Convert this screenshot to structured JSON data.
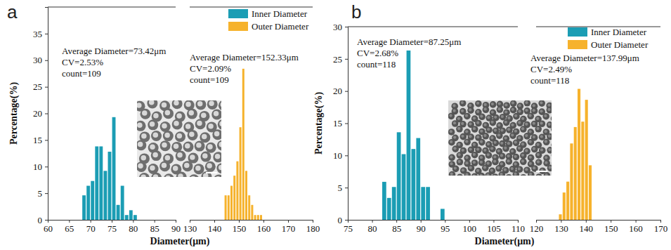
{
  "chart_data": [
    {
      "type": "histogram",
      "title": "a",
      "x_label": "Diameter(μm)",
      "y_label": "Percentage(%)",
      "xlim": [
        [
          60,
          90
        ],
        [
          130,
          180
        ]
      ],
      "xticks": [
        [
          60,
          65,
          70,
          75,
          80,
          85,
          90
        ],
        [
          130,
          140,
          150,
          160,
          170,
          180
        ]
      ],
      "ylim": [
        0,
        40
      ],
      "yticks": [
        0,
        5,
        10,
        15,
        20,
        25,
        30,
        35
      ],
      "grid": false,
      "legend": "upper right",
      "annotations": [
        [
          "Average Diameter=73.42μm",
          "CV=2.53%",
          "count=109"
        ],
        [
          "Average Diameter=152.33μm",
          "CV=2.09%",
          "count=109"
        ]
      ],
      "series": [
        {
          "name": "Inner Diameter",
          "color": "#1b9db4",
          "bins": [
            68,
            69,
            70,
            71,
            72,
            73,
            74,
            75,
            76,
            77,
            78,
            79,
            80,
            81
          ],
          "values": [
            4.6,
            6.4,
            7.3,
            13.8,
            13.8,
            9.2,
            12.8,
            19.3,
            2.8,
            6.4,
            0.9,
            1.8,
            0.9
          ]
        },
        {
          "name": "Outer Diameter",
          "color": "#f6b22c",
          "bins": [
            144.0,
            145.2,
            146.4,
            147.6,
            148.8,
            150.0,
            151.2,
            152.4,
            153.6,
            154.8,
            156.0,
            157.2,
            158.4,
            159.6
          ],
          "values": [
            4.6,
            4.6,
            6.4,
            8.3,
            11.0,
            17.4,
            28.4,
            9.2,
            4.6,
            2.8,
            0.9,
            0.9,
            0.9
          ]
        }
      ]
    },
    {
      "type": "histogram",
      "title": "b",
      "x_label": "Diameter(μm)",
      "y_label": "Percentage(%)",
      "xlim": [
        [
          75,
          110
        ],
        [
          120,
          170
        ]
      ],
      "xticks": [
        [
          75,
          80,
          85,
          90,
          95,
          100,
          105,
          110
        ],
        [
          120,
          130,
          140,
          150,
          160,
          170
        ]
      ],
      "ylim": [
        0,
        30
      ],
      "yticks": [
        0,
        5,
        10,
        15,
        20,
        25,
        30
      ],
      "grid": false,
      "legend": "upper right",
      "annotations": [
        [
          "Average Diameter=87.25μm",
          "CV=2.68%",
          "count=118"
        ],
        [
          "Average Diameter=137.99μm",
          "CV=2.49%",
          "count=118"
        ]
      ],
      "series": [
        {
          "name": "Inner Diameter",
          "color": "#1b9db4",
          "bins": [
            82,
            83,
            84,
            85,
            86,
            87,
            88,
            89,
            90,
            91,
            92,
            93,
            94,
            95
          ],
          "values": [
            5.9,
            3.4,
            5.1,
            13.6,
            10.2,
            26.3,
            11.0,
            12.7,
            5.1,
            5.1,
            0,
            0,
            1.7
          ]
        },
        {
          "name": "Outer Diameter",
          "color": "#f6b22c",
          "bins": [
            129.0,
            130.5,
            132.0,
            133.5,
            135.0,
            136.5,
            138.0,
            139.5,
            141.0,
            142.5
          ],
          "values": [
            0.85,
            4.24,
            5.93,
            11.86,
            14.41,
            20.34,
            15.25,
            18.64,
            8.47
          ]
        }
      ]
    }
  ]
}
